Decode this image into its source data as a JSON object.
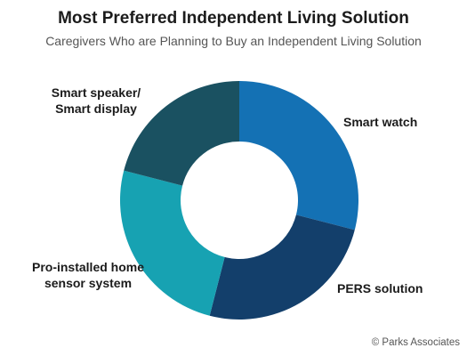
{
  "chart_data": {
    "type": "pie",
    "variant": "donut",
    "title": "Most Preferred Independent Living Solution",
    "subtitle": "Caregivers Who are Planning to Buy an Independent Living Solution",
    "slices": [
      {
        "name": "Smart watch",
        "value": 29,
        "color": "#1471b4"
      },
      {
        "name": "PERS solution",
        "value": 25,
        "color": "#133f6b"
      },
      {
        "name": "Pro-installed home sensor system",
        "value": 25,
        "color": "#17a2b2"
      },
      {
        "name": "Smart speaker/ Smart display",
        "value": 21,
        "color": "#1a5161"
      }
    ],
    "labels": [
      {
        "lines": [
          "Smart watch"
        ]
      },
      {
        "lines": [
          "PERS solution"
        ]
      },
      {
        "lines": [
          "Pro-installed home",
          "sensor system"
        ]
      },
      {
        "lines": [
          "Smart speaker/",
          "Smart display"
        ]
      }
    ],
    "start_position": "top, clockwise"
  },
  "credit": "© Parks Associates"
}
